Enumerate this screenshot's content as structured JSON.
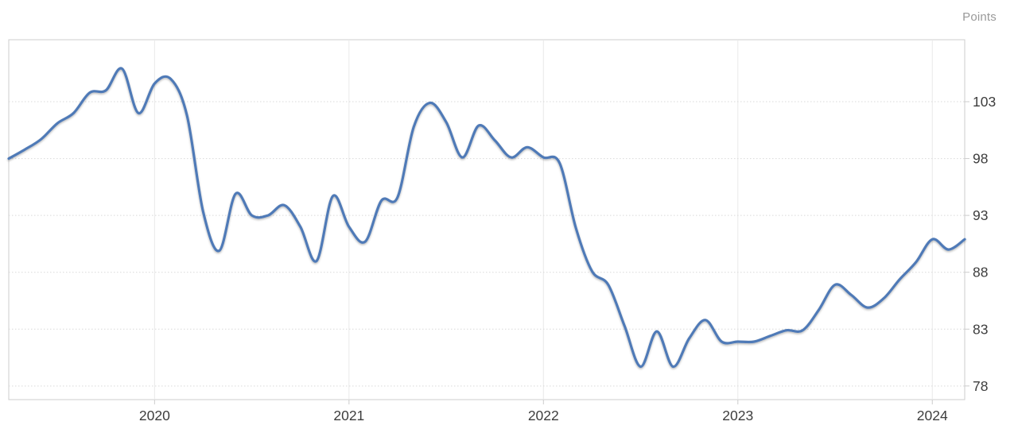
{
  "header": {
    "unit_label": "Points"
  },
  "colors": {
    "background": "#ffffff",
    "line": "#4f7ab7",
    "axis_text": "#3d3d3d",
    "unit_text": "#999999",
    "grid_horizontal": "#d9d9d9",
    "grid_vertical": "#e9e9e9",
    "plot_border": "#cccccc",
    "tick": "#cccccc"
  },
  "chart_data": {
    "type": "line",
    "title": "",
    "xlabel": "",
    "ylabel": "Points",
    "grid": true,
    "legend_position": "none",
    "ylim": [
      76.8,
      108.45
    ],
    "y_ticks": [
      103,
      98,
      93,
      88,
      83,
      78
    ],
    "x_ticks": [
      {
        "label": "2020",
        "month_index": 9
      },
      {
        "label": "2021",
        "month_index": 21
      },
      {
        "label": "2022",
        "month_index": 33
      },
      {
        "label": "2023",
        "month_index": 45
      },
      {
        "label": "2024",
        "month_index": 57
      }
    ],
    "x": [
      "2019-04",
      "2019-05",
      "2019-06",
      "2019-07",
      "2019-08",
      "2019-09",
      "2019-10",
      "2019-11",
      "2019-12",
      "2020-01",
      "2020-02",
      "2020-03",
      "2020-04",
      "2020-05",
      "2020-06",
      "2020-07",
      "2020-08",
      "2020-09",
      "2020-10",
      "2020-11",
      "2020-12",
      "2021-01",
      "2021-02",
      "2021-03",
      "2021-04",
      "2021-05",
      "2021-06",
      "2021-07",
      "2021-08",
      "2021-09",
      "2021-10",
      "2021-11",
      "2021-12",
      "2022-01",
      "2022-02",
      "2022-03",
      "2022-04",
      "2022-05",
      "2022-06",
      "2022-07",
      "2022-08",
      "2022-09",
      "2022-10",
      "2022-11",
      "2022-12",
      "2023-01",
      "2023-02",
      "2023-03",
      "2023-04",
      "2023-05",
      "2023-06",
      "2023-07",
      "2023-08",
      "2023-09",
      "2023-10",
      "2023-11",
      "2023-12",
      "2024-01",
      "2024-02",
      "2024-03"
    ],
    "values": [
      98.0,
      98.8,
      99.7,
      101.1,
      102.0,
      103.8,
      104.0,
      105.9,
      102.0,
      104.6,
      105.0,
      101.8,
      93.3,
      89.9,
      94.9,
      93.0,
      93.0,
      93.9,
      92.0,
      89.0,
      94.7,
      92.0,
      90.7,
      94.3,
      94.6,
      100.8,
      102.9,
      101.2,
      98.1,
      100.9,
      99.6,
      98.1,
      99.0,
      98.1,
      97.6,
      91.9,
      88.1,
      86.9,
      83.3,
      79.7,
      82.8,
      79.7,
      82.2,
      83.8,
      81.9,
      81.9,
      81.9,
      82.4,
      82.9,
      82.9,
      84.7,
      86.9,
      86.0,
      84.9,
      85.7,
      87.4,
      88.9,
      90.9,
      90.0,
      90.9
    ]
  }
}
